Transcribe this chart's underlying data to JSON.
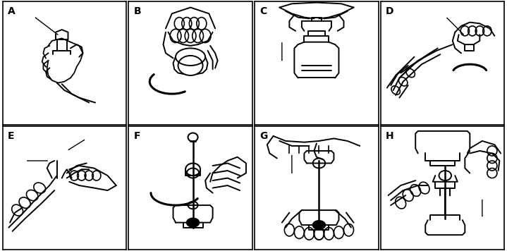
{
  "fig_width": 7.19,
  "fig_height": 3.56,
  "dpi": 100,
  "background_color": "#ffffff",
  "border_color": "#000000",
  "label_color": "#000000",
  "label_fontsize": 10,
  "label_fontweight": "bold",
  "border_linewidth": 1.2,
  "panel_bg": "#ffffff",
  "panels": [
    "A",
    "B",
    "C",
    "D",
    "E",
    "F",
    "G",
    "H"
  ],
  "nrows": 2,
  "ncols": 4,
  "hmargin": 0.005,
  "vmargin": 0.005
}
